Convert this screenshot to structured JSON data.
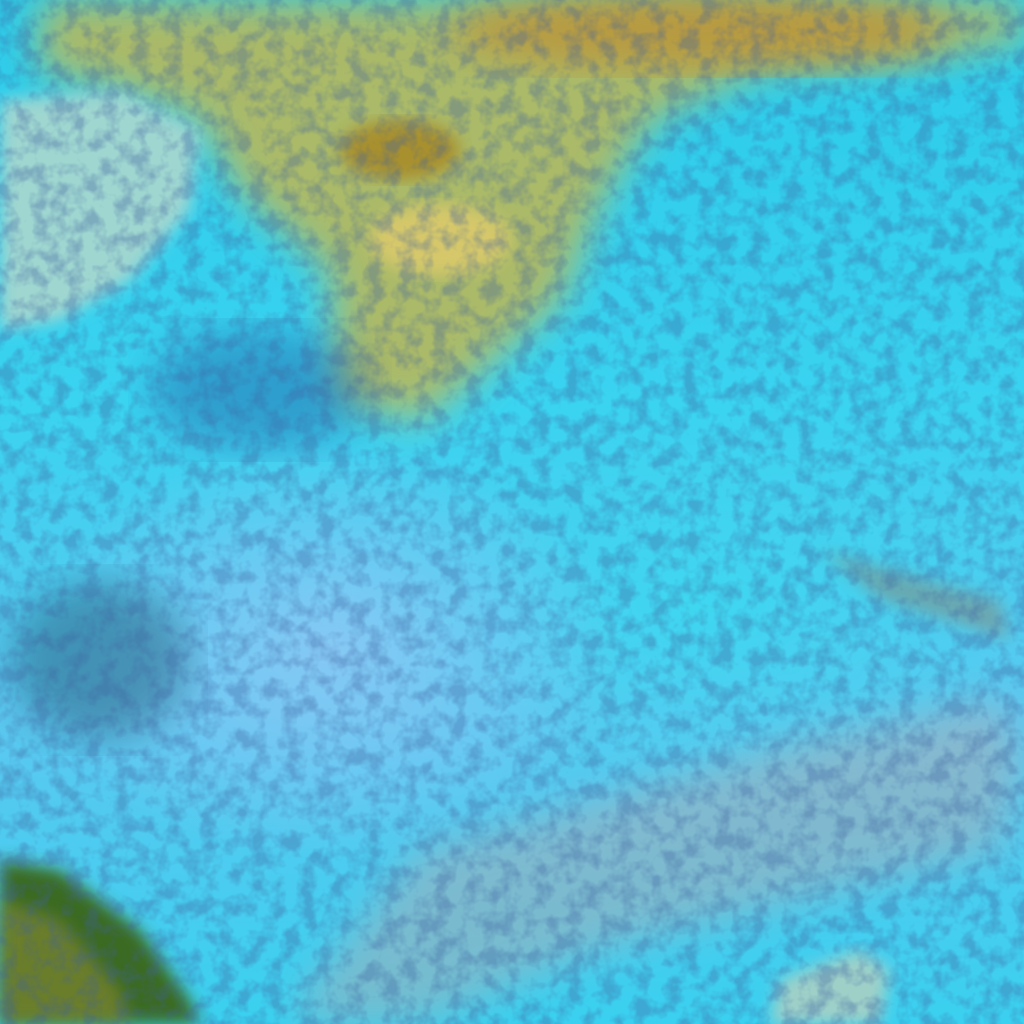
{
  "image": {
    "kind": "false-color satellite imagery",
    "colors": {
      "snow_cloud": "#3ad3f0",
      "land_vegetation": "#c9b45a",
      "water": "#9fd6d0",
      "dark_forest": "#2a5a2a",
      "shadow": "#1a3a7a"
    }
  }
}
